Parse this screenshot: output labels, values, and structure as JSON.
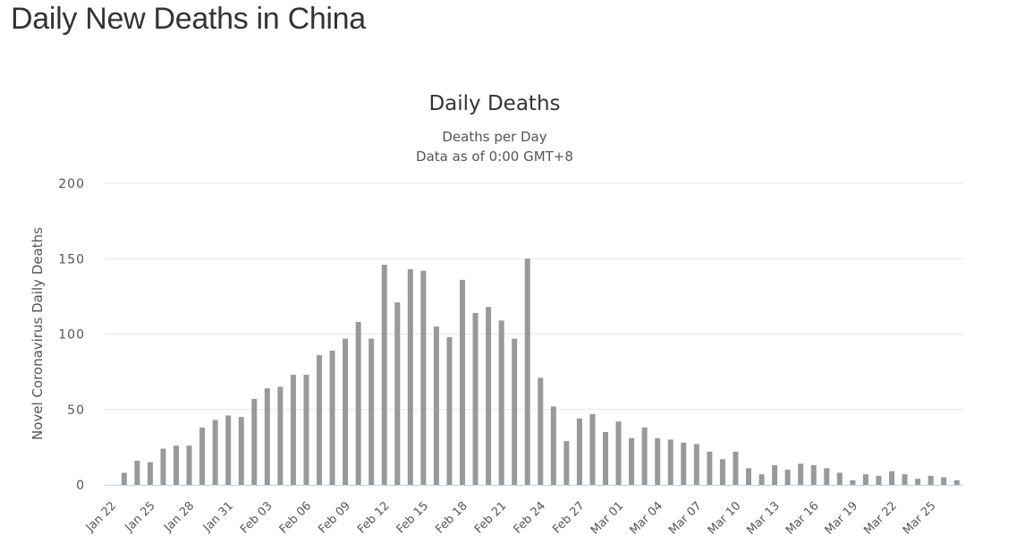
{
  "page": {
    "title": "Daily New Deaths in China"
  },
  "chart_data": {
    "type": "bar",
    "title": "Daily Deaths",
    "subtitle_lines": [
      "Deaths per Day",
      "Data as of 0:00 GMT+8"
    ],
    "ylabel": "Novel Coronavirus Daily Deaths",
    "xlabel": "",
    "ylim": [
      0,
      200
    ],
    "yticks": [
      0,
      50,
      100,
      150,
      200
    ],
    "bar_color": "#999999",
    "grid": true,
    "categories": [
      "Jan 22",
      "Jan 23",
      "Jan 24",
      "Jan 25",
      "Jan 26",
      "Jan 27",
      "Jan 28",
      "Jan 29",
      "Jan 30",
      "Jan 31",
      "Feb 01",
      "Feb 02",
      "Feb 03",
      "Feb 04",
      "Feb 05",
      "Feb 06",
      "Feb 07",
      "Feb 08",
      "Feb 09",
      "Feb 10",
      "Feb 11",
      "Feb 12",
      "Feb 13",
      "Feb 14",
      "Feb 15",
      "Feb 16",
      "Feb 17",
      "Feb 18",
      "Feb 19",
      "Feb 20",
      "Feb 21",
      "Feb 22",
      "Feb 23",
      "Feb 24",
      "Feb 25",
      "Feb 26",
      "Feb 27",
      "Feb 28",
      "Feb 29",
      "Mar 01",
      "Mar 02",
      "Mar 03",
      "Mar 04",
      "Mar 05",
      "Mar 06",
      "Mar 07",
      "Mar 08",
      "Mar 09",
      "Mar 10",
      "Mar 11",
      "Mar 12",
      "Mar 13",
      "Mar 14",
      "Mar 15",
      "Mar 16",
      "Mar 17",
      "Mar 18",
      "Mar 19",
      "Mar 20",
      "Mar 21",
      "Mar 22",
      "Mar 23",
      "Mar 24",
      "Mar 25",
      "Mar 26",
      "Mar 27"
    ],
    "xtick_labels": [
      "Jan 22",
      "Jan 25",
      "Jan 28",
      "Jan 31",
      "Feb 03",
      "Feb 06",
      "Feb 09",
      "Feb 12",
      "Feb 15",
      "Feb 18",
      "Feb 21",
      "Feb 24",
      "Feb 27",
      "Mar 01",
      "Mar 04",
      "Mar 07",
      "Mar 10",
      "Mar 13",
      "Mar 16",
      "Mar 19",
      "Mar 22",
      "Mar 25"
    ],
    "values": [
      0,
      8,
      16,
      15,
      24,
      26,
      26,
      38,
      43,
      46,
      45,
      57,
      64,
      65,
      73,
      73,
      86,
      89,
      97,
      108,
      97,
      146,
      121,
      143,
      142,
      105,
      98,
      136,
      114,
      118,
      109,
      97,
      150,
      71,
      52,
      29,
      44,
      47,
      35,
      42,
      31,
      38,
      31,
      30,
      28,
      27,
      22,
      17,
      22,
      11,
      7,
      13,
      10,
      14,
      13,
      11,
      8,
      3,
      7,
      6,
      9,
      7,
      4,
      6,
      5,
      3
    ]
  }
}
